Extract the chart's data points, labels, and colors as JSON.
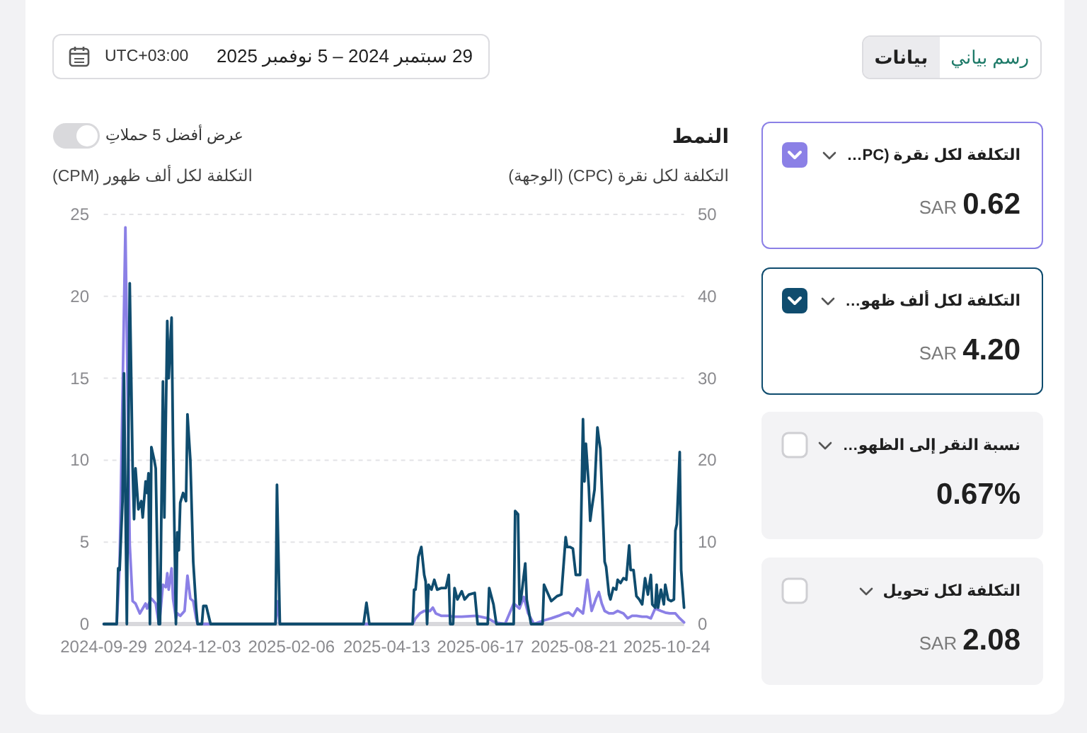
{
  "chart_data": [
    {
      "type": "other",
      "annotations": [
        "رسم بياني",
        "بيانات",
        "29 سبتمبر 2024 – 5 نوفمبر 2025",
        "UTC+03:00"
      ]
    },
    {
      "type": "other",
      "categories": [
        "التكلفة لكل نقرة (PC…",
        "التكلفة لكل ألف ظهو…",
        "نسبة النقر إلى الظهو…",
        "التكلفة لكل تحويل"
      ],
      "annotations": [
        "SAR 0.62",
        "SAR 4.20",
        "0.67%",
        "SAR 2.08"
      ],
      "colors": [
        "#8b80e6",
        "#0f4c6e",
        null,
        null
      ]
    },
    {
      "type": "line",
      "title": "النمط",
      "annotations": [
        "عرض أفضل 5 حملاتِ"
      ],
      "ylabel": "التكلفة لكل ألف ظهور (CPM)",
      "y2label": "التكلفة لكل نقرة (CPC) (الوجهة)",
      "xlim": [
        "2024-09-29",
        "2025-11-05"
      ],
      "xticks": [
        "2024-09-29",
        "2024-12-03",
        "2025-02-06",
        "2025-04-13",
        "2025-06-17",
        "2025-08-21",
        "2025-10-24"
      ],
      "ylim": [
        0,
        25
      ],
      "yticks": [
        0,
        5,
        10,
        15,
        20,
        25
      ],
      "y2lim": [
        0,
        50
      ],
      "y2ticks": [
        0,
        10,
        20,
        30,
        40,
        50
      ],
      "grid": "y",
      "series": [
        {
          "color": "#8b80e6",
          "axis": "y2",
          "x": [
            "2024-09-29",
            "2024-10-08",
            "2024-10-10",
            "2024-10-14",
            "2024-10-17",
            "2024-10-19",
            "2024-10-21",
            "2024-10-24",
            "2024-10-26",
            "2024-10-28",
            "2024-10-29",
            "2024-10-31",
            "2024-11-01",
            "2024-11-04",
            "2024-11-06",
            "2024-11-07",
            "2024-11-09",
            "2024-11-11",
            "2024-11-12",
            "2024-11-13",
            "2024-11-15",
            "2024-11-16",
            "2024-11-18",
            "2024-11-19",
            "2024-11-21",
            "2024-11-24",
            "2024-11-26",
            "2024-11-28",
            "2024-11-30",
            "2024-12-02",
            "2024-12-03",
            "2025-01-26",
            "2025-01-27",
            "2025-01-29",
            "2025-05-01",
            "2025-05-03",
            "2025-05-06",
            "2025-05-09",
            "2025-05-13",
            "2025-05-15",
            "2025-05-17",
            "2025-05-21",
            "2025-05-26",
            "2025-05-29",
            "2025-06-04",
            "2025-06-14",
            "2025-06-22",
            "2025-06-27",
            "2025-07-04",
            "2025-07-10",
            "2025-07-14",
            "2025-07-17",
            "2025-07-20",
            "2025-07-24",
            "2025-08-01",
            "2025-08-05",
            "2025-08-10",
            "2025-08-14",
            "2025-08-17",
            "2025-08-20",
            "2025-08-23",
            "2025-08-27",
            "2025-08-28",
            "2025-08-30",
            "2025-09-01",
            "2025-09-02",
            "2025-09-05",
            "2025-09-07",
            "2025-09-09",
            "2025-09-11",
            "2025-09-14",
            "2025-09-17",
            "2025-09-20",
            "2025-09-24",
            "2025-09-27",
            "2025-09-30",
            "2025-10-03",
            "2025-10-07",
            "2025-10-10",
            "2025-10-13",
            "2025-10-16",
            "2025-10-20",
            "2025-10-23",
            "2025-10-26",
            "2025-10-30",
            "2025-11-02",
            "2025-11-05"
          ],
          "values": [
            0,
            0,
            7.1,
            48.4,
            9.7,
            2.8,
            2.5,
            1.3,
            1.9,
            2.5,
            1.9,
            2.8,
            3.1,
            2.5,
            0.2,
            1.0,
            4.8,
            4.5,
            6.2,
            4.2,
            6.8,
            3.1,
            0.7,
            1.3,
            1.0,
            1.6,
            5.9,
            3.1,
            2.8,
            0.7,
            0,
            0,
            2.8,
            0,
            0,
            0.7,
            1.3,
            1.6,
            1.6,
            2.0,
            1.3,
            1.0,
            1.0,
            0.9,
            0.9,
            1.0,
            0.7,
            0.2,
            0,
            2.5,
            1.9,
            3.3,
            1.3,
            0,
            0.5,
            0.7,
            1.0,
            1.3,
            1.4,
            1.0,
            1.9,
            1.3,
            2.5,
            5.4,
            2.8,
            1.6,
            3.1,
            3.9,
            2.5,
            1.6,
            1.3,
            1.3,
            1.6,
            1.3,
            0.7,
            1.0,
            1.0,
            0.9,
            0.9,
            0.7,
            1.9,
            1.6,
            1.4,
            1.3,
            1.3,
            0.7,
            0.2
          ]
        },
        {
          "color": "#0f4c6e",
          "x": [
            "2024-09-29",
            "2024-10-08",
            "2024-10-09",
            "2024-10-10",
            "2024-10-12",
            "2024-10-13",
            "2024-10-15",
            "2024-10-17",
            "2024-10-19",
            "2024-10-20",
            "2024-10-21",
            "2024-10-23",
            "2024-10-25",
            "2024-10-26",
            "2024-10-28",
            "2024-10-29",
            "2024-10-30",
            "2024-10-31",
            "2024-11-01",
            "2024-11-03",
            "2024-11-04",
            "2024-11-06",
            "2024-11-07",
            "2024-11-09",
            "2024-11-10",
            "2024-11-12",
            "2024-11-13",
            "2024-11-15",
            "2024-11-16",
            "2024-11-18",
            "2024-11-19",
            "2024-11-20",
            "2024-11-21",
            "2024-11-23",
            "2024-11-25",
            "2024-11-26",
            "2024-11-28",
            "2024-11-30",
            "2024-12-02",
            "2024-12-03",
            "2024-12-06",
            "2024-12-07",
            "2024-12-09",
            "2024-12-12",
            "2025-01-26",
            "2025-01-27",
            "2025-01-29",
            "2025-03-28",
            "2025-03-30",
            "2025-04-01",
            "2025-05-01",
            "2025-05-02",
            "2025-05-03",
            "2025-05-05",
            "2025-05-07",
            "2025-05-09",
            "2025-05-10",
            "2025-05-11",
            "2025-05-12",
            "2025-05-14",
            "2025-05-15",
            "2025-05-16",
            "2025-05-18",
            "2025-05-21",
            "2025-05-24",
            "2025-05-26",
            "2025-05-27",
            "2025-05-29",
            "2025-05-30",
            "2025-06-01",
            "2025-06-04",
            "2025-06-06",
            "2025-06-09",
            "2025-06-13",
            "2025-06-15",
            "2025-06-22",
            "2025-06-23",
            "2025-06-26",
            "2025-06-28",
            "2025-07-10",
            "2025-07-11",
            "2025-07-13",
            "2025-07-14",
            "2025-07-15",
            "2025-07-18",
            "2025-07-19",
            "2025-07-22",
            "2025-07-30",
            "2025-07-31",
            "2025-08-02",
            "2025-08-05",
            "2025-08-09",
            "2025-08-12",
            "2025-08-15",
            "2025-08-16",
            "2025-08-18",
            "2025-08-20",
            "2025-08-22",
            "2025-08-25",
            "2025-08-27",
            "2025-08-28",
            "2025-08-29",
            "2025-08-31",
            "2025-09-01",
            "2025-09-02",
            "2025-09-04",
            "2025-09-06",
            "2025-09-07",
            "2025-09-08",
            "2025-09-11",
            "2025-09-12",
            "2025-09-14",
            "2025-09-15",
            "2025-09-17",
            "2025-09-19",
            "2025-09-20",
            "2025-09-22",
            "2025-09-24",
            "2025-09-26",
            "2025-09-28",
            "2025-09-29",
            "2025-10-01",
            "2025-10-03",
            "2025-10-05",
            "2025-10-07",
            "2025-10-09",
            "2025-10-11",
            "2025-10-13",
            "2025-10-14",
            "2025-10-16",
            "2025-10-17",
            "2025-10-18",
            "2025-10-20",
            "2025-10-22",
            "2025-10-23",
            "2025-10-25",
            "2025-10-27",
            "2025-10-29",
            "2025-10-30",
            "2025-10-31",
            "2025-11-02",
            "2025-11-03",
            "2025-11-05"
          ],
          "values": [
            0,
            0,
            3.4,
            3.3,
            7.5,
            15.3,
            0,
            20.8,
            9.6,
            6.4,
            9.5,
            7.0,
            7.5,
            6.5,
            8.7,
            8.0,
            9.2,
            0,
            10.8,
            10.0,
            9.5,
            0,
            0,
            14.8,
            6.5,
            18.5,
            15,
            18.7,
            11,
            0,
            5.6,
            4.5,
            7.4,
            8.0,
            7.5,
            12.8,
            10,
            3.8,
            1,
            0,
            0,
            1.1,
            1.1,
            0,
            0,
            8.5,
            0,
            0,
            1.3,
            0,
            0,
            2.1,
            2.1,
            4.1,
            4.7,
            3.0,
            2.6,
            0,
            2.4,
            2.1,
            2.4,
            2.7,
            2.1,
            2.2,
            2.2,
            3.0,
            0,
            0,
            2.2,
            1.5,
            2.0,
            1.5,
            1.8,
            1.9,
            0,
            0,
            2.2,
            1.2,
            0,
            0,
            6.9,
            6.7,
            1.2,
            1.5,
            3.7,
            1.5,
            0,
            0,
            2.4,
            2.0,
            1.4,
            1.7,
            1.8,
            5.3,
            4.7,
            4.7,
            4.6,
            3.0,
            3.0,
            12.5,
            8.7,
            11.0,
            8.4,
            6.3,
            7.0,
            8.2,
            12.0,
            11.3,
            10.7,
            3.8,
            3.5,
            1.8,
            1.5,
            2.2,
            2.1,
            2.7,
            2.5,
            2.8,
            2.7,
            4.8,
            3.3,
            3.3,
            1.7,
            1.5,
            1.2,
            2.8,
            1.8,
            3.0,
            1.2,
            1.0,
            2.4,
            1.0,
            2.1,
            1.2,
            2.4,
            1.5,
            1.4,
            1.5,
            5.7,
            6.1,
            10.5,
            3.3,
            1.0
          ]
        }
      ]
    }
  ]
}
